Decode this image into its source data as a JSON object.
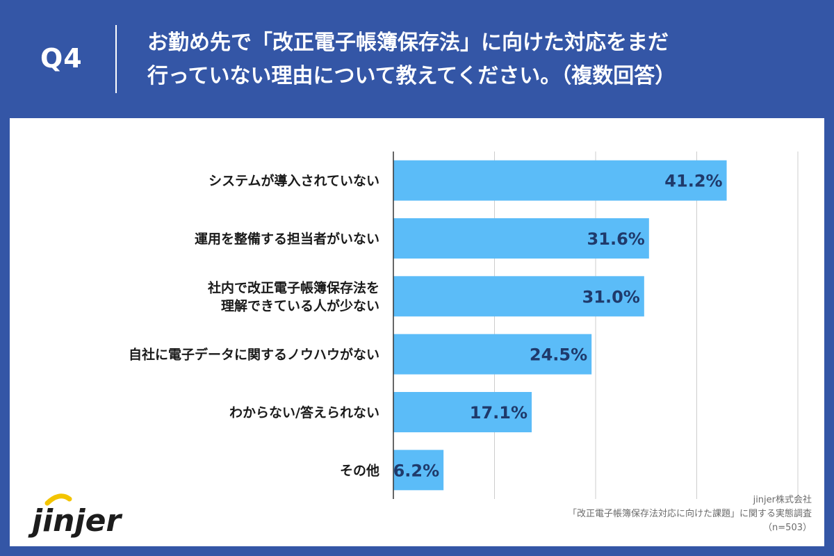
{
  "header": {
    "q_number": "Q4",
    "question_line1": "お勤め先で「改正電子帳簿保存法」に向けた対応をまだ",
    "question_line2": "行っていない理由について教えてください。（複数回答）"
  },
  "chart_data": {
    "type": "bar",
    "orientation": "horizontal",
    "categories": [
      [
        "システムが導入されていない"
      ],
      [
        "運用を整備する担当者がいない"
      ],
      [
        "社内で改正電子帳簿保存法を",
        "理解できている人が少ない"
      ],
      [
        "自社に電子データに関するノウハウがない"
      ],
      [
        "わからない/答えられない"
      ],
      [
        "その他"
      ]
    ],
    "values": [
      41.2,
      31.6,
      31.0,
      24.5,
      17.1,
      6.2
    ],
    "value_labels": [
      "41.2%",
      "31.6%",
      "31.0%",
      "24.5%",
      "17.1%",
      "6.2%"
    ],
    "xlim": [
      0,
      50
    ],
    "x_gridlines": [
      0,
      12.5,
      25,
      37.5,
      50
    ],
    "title": "",
    "xlabel": "",
    "ylabel": "",
    "bar_color": "#5bbcf8",
    "label_color": "#1f3a6b"
  },
  "source": {
    "company": "jinjer株式会社",
    "survey": "「改正電子帳簿保存法対応に向けた課題」に関する実態調査",
    "sample": "（n=503）"
  },
  "logo": {
    "text": "jinjer",
    "color": "#1c1c1c",
    "accent": "#f3c400"
  },
  "colors": {
    "header_bg": "#3456a6",
    "panel_bg": "#ffffff",
    "grid": "#cccccc",
    "axis": "#333333"
  }
}
